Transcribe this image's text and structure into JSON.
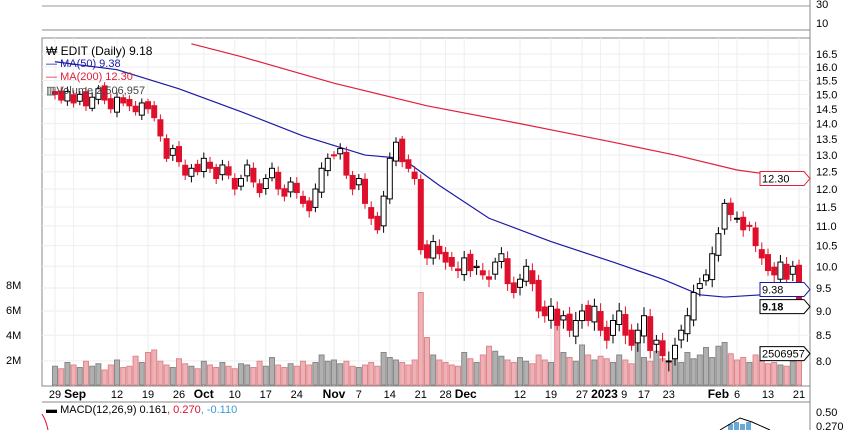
{
  "legend": {
    "symbol": "EDIT (Daily) 9.18",
    "ma50": "MA(50) 9.38",
    "ma200": "MA(200) 12.30",
    "volume": "Volume 2,506,957",
    "macd_label": "MACD(12,26,9) 0.161",
    "macd_signal": ", 0.270",
    "macd_hist": ", -0.110"
  },
  "colors": {
    "ma50": "#1a1aa6",
    "ma200": "#e0203c",
    "down": "#e0102c",
    "vol_up": "#b0b0b0",
    "vol_down": "#f0b0b8",
    "macd_hist": "#6aa8d8"
  },
  "chart_data": {
    "type": "candlestick",
    "title": "EDIT (Daily)",
    "ylim": [
      7.8,
      16.8
    ],
    "y_ticks": [
      "16.5",
      "16.0",
      "15.5",
      "15.0",
      "14.5",
      "14.0",
      "13.5",
      "13.0",
      "12.5",
      "12.0",
      "11.5",
      "11.0",
      "10.5",
      "10.0",
      "9.5",
      "9.0",
      "8.5",
      "8.0"
    ],
    "vol_ticks": [
      "8M",
      "6M",
      "4M",
      "2M"
    ],
    "top_panel_ticks": [
      "30",
      "10"
    ],
    "x_ticks": [
      {
        "i": 0,
        "t": "29"
      },
      {
        "i": 3,
        "t": "Sep"
      },
      {
        "i": 10,
        "t": "12"
      },
      {
        "i": 15,
        "t": "19"
      },
      {
        "i": 20,
        "t": "26"
      },
      {
        "i": 24,
        "t": "Oct"
      },
      {
        "i": 29,
        "t": "10"
      },
      {
        "i": 34,
        "t": "17"
      },
      {
        "i": 39,
        "t": "24"
      },
      {
        "i": 45,
        "t": "Nov"
      },
      {
        "i": 49,
        "t": "7"
      },
      {
        "i": 54,
        "t": "14"
      },
      {
        "i": 59,
        "t": "21"
      },
      {
        "i": 63,
        "t": "28"
      },
      {
        "i": 66,
        "t": "Dec"
      },
      {
        "i": 75,
        "t": "12"
      },
      {
        "i": 80,
        "t": "19"
      },
      {
        "i": 85,
        "t": "27"
      },
      {
        "i": 88,
        "t": "2023"
      },
      {
        "i": 91,
        "t": "9"
      },
      {
        "i": 95,
        "t": "17"
      },
      {
        "i": 99,
        "t": "23"
      },
      {
        "i": 107,
        "t": "Feb"
      },
      {
        "i": 110,
        "t": "6"
      },
      {
        "i": 115,
        "t": "13"
      },
      {
        "i": 120,
        "t": "21"
      }
    ],
    "closes": [
      15.0,
      14.8,
      15.1,
      14.7,
      15.0,
      14.6,
      14.9,
      15.2,
      14.8,
      14.5,
      14.9,
      14.7,
      14.6,
      14.4,
      14.7,
      14.5,
      14.2,
      13.6,
      12.9,
      13.2,
      12.8,
      12.4,
      12.6,
      12.5,
      12.9,
      12.6,
      12.3,
      12.7,
      12.4,
      12.0,
      12.3,
      12.7,
      12.2,
      11.9,
      12.3,
      12.6,
      12.0,
      11.8,
      12.2,
      11.9,
      11.6,
      11.4,
      12.0,
      12.6,
      12.9,
      13.0,
      13.2,
      12.4,
      12.0,
      12.3,
      11.6,
      11.2,
      10.9,
      11.8,
      12.9,
      13.4,
      12.8,
      12.6,
      12.3,
      10.4,
      10.2,
      10.6,
      10.3,
      10.1,
      10.0,
      9.9,
      10.2,
      9.9,
      10.0,
      9.8,
      9.7,
      10.1,
      10.3,
      9.6,
      9.4,
      9.7,
      10.0,
      9.6,
      9.0,
      8.9,
      9.1,
      8.7,
      8.9,
      8.6,
      8.8,
      9.0,
      8.8,
      9.1,
      8.6,
      8.4,
      8.8,
      9.0,
      8.5,
      8.3,
      8.6,
      8.9,
      8.2,
      8.4,
      8.1,
      8.0,
      8.3,
      8.6,
      8.9,
      9.4,
      9.6,
      9.8,
      10.3,
      10.8,
      11.6,
      11.3,
      11.2,
      10.9,
      11.0,
      10.5,
      10.2,
      9.9,
      9.8,
      10.1,
      9.7,
      10.0,
      9.18
    ],
    "volumes_m": [
      1.5,
      1.3,
      1.8,
      1.6,
      1.4,
      1.9,
      1.5,
      1.7,
      1.2,
      1.6,
      2.0,
      1.4,
      1.5,
      2.3,
      1.8,
      2.6,
      2.8,
      1.9,
      1.6,
      1.4,
      2.1,
      1.7,
      1.5,
      1.3,
      1.9,
      1.6,
      1.4,
      1.8,
      1.5,
      1.3,
      1.7,
      1.6,
      1.4,
      1.9,
      1.5,
      2.2,
      1.6,
      1.4,
      1.7,
      1.5,
      1.9,
      1.6,
      1.8,
      2.4,
      1.9,
      2.0,
      1.7,
      1.9,
      1.5,
      1.4,
      1.6,
      1.8,
      1.5,
      2.6,
      2.2,
      2.0,
      1.8,
      1.6,
      2.0,
      7.4,
      3.8,
      2.4,
      2.0,
      1.8,
      1.6,
      1.5,
      2.6,
      2.1,
      1.8,
      2.4,
      3.1,
      2.7,
      2.3,
      2.0,
      1.8,
      2.2,
      1.9,
      1.7,
      2.4,
      2.0,
      1.8,
      5.6,
      2.6,
      2.2,
      1.9,
      3.2,
      2.4,
      2.0,
      2.3,
      2.1,
      1.8,
      2.4,
      2.0,
      1.7,
      3.6,
      2.2,
      1.9,
      2.7,
      2.1,
      1.9,
      2.3,
      1.8,
      2.6,
      2.1,
      2.4,
      3.0,
      2.2,
      3.1,
      3.4,
      2.5,
      2.0,
      2.2,
      1.8,
      2.4,
      1.9,
      1.7,
      1.8,
      1.6,
      1.5,
      1.9,
      2.51
    ],
    "ma50": [
      [
        0,
        16.2
      ],
      [
        10,
        15.9
      ],
      [
        20,
        15.2
      ],
      [
        30,
        14.4
      ],
      [
        40,
        13.6
      ],
      [
        50,
        13.0
      ],
      [
        56,
        12.9
      ],
      [
        62,
        12.1
      ],
      [
        70,
        11.2
      ],
      [
        80,
        10.6
      ],
      [
        90,
        10.1
      ],
      [
        98,
        9.7
      ],
      [
        104,
        9.35
      ],
      [
        108,
        9.3
      ],
      [
        114,
        9.35
      ],
      [
        120,
        9.38
      ]
    ],
    "ma200": [
      [
        22,
        16.9
      ],
      [
        30,
        16.4
      ],
      [
        45,
        15.4
      ],
      [
        60,
        14.6
      ],
      [
        75,
        14.0
      ],
      [
        90,
        13.4
      ],
      [
        100,
        13.0
      ],
      [
        110,
        12.55
      ],
      [
        120,
        12.3
      ]
    ],
    "last_labels": {
      "ma200": "12.30",
      "ma50": "9.38",
      "close": "9.18",
      "volume": "2506957"
    },
    "macd": {
      "tick": "0.50",
      "signal_label": "0.270"
    }
  }
}
